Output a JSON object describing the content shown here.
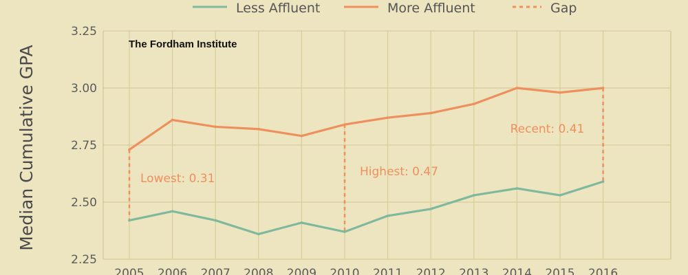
{
  "source_label": "The Fordham Institute",
  "chart_data": {
    "type": "line",
    "ylabel": "Median Cumulative GPA",
    "xlabel": "",
    "x": [
      "2005",
      "2006",
      "2007",
      "2008",
      "2009",
      "2010",
      "2011",
      "2012",
      "2013",
      "2014",
      "2015",
      "2016"
    ],
    "ylim": [
      2.25,
      3.25
    ],
    "yticks": [
      "2.25",
      "2.50",
      "2.75",
      "3.00",
      "3.25"
    ],
    "grid": true,
    "legend_position": "top-center",
    "series": [
      {
        "name": "Less Affluent",
        "color": "#7fb99d",
        "values": [
          2.42,
          2.46,
          2.42,
          2.36,
          2.41,
          2.37,
          2.44,
          2.47,
          2.53,
          2.56,
          2.53,
          2.59
        ]
      },
      {
        "name": "More Affluent",
        "color": "#ee8f5e",
        "values": [
          2.73,
          2.86,
          2.83,
          2.82,
          2.79,
          2.84,
          2.87,
          2.89,
          2.93,
          3.0,
          2.98,
          3.0
        ]
      }
    ],
    "gap": {
      "name": "Gap",
      "color": "#ee8f5e",
      "markers": [
        {
          "year": "2005",
          "label": "Lowest: 0.31"
        },
        {
          "year": "2010",
          "label": "Highest: 0.47"
        },
        {
          "year": "2016",
          "label": "Recent: 0.41"
        }
      ]
    }
  }
}
